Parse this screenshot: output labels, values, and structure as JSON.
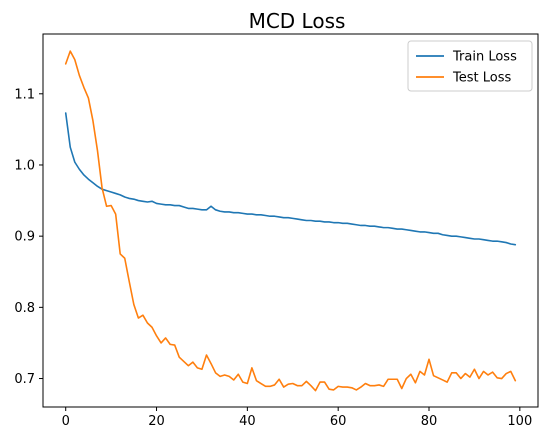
{
  "chart_data": {
    "type": "line",
    "title": "MCD Loss",
    "xlabel": "",
    "ylabel": "",
    "xlim": [
      -5,
      104
    ],
    "ylim": [
      0.66,
      1.184
    ],
    "x_ticks": [
      0,
      20,
      40,
      60,
      80,
      100
    ],
    "y_ticks": [
      0.7,
      0.8,
      0.9,
      1.0,
      1.1
    ],
    "x_tick_labels": [
      "0",
      "20",
      "40",
      "60",
      "80",
      "100"
    ],
    "y_tick_labels": [
      "0.7",
      "0.8",
      "0.9",
      "1.0",
      "1.1"
    ],
    "grid": false,
    "legend_position": "top-right",
    "series": [
      {
        "name": "Train Loss",
        "color": "#1f77b4",
        "x": [
          0,
          1,
          2,
          3,
          4,
          5,
          6,
          7,
          8,
          9,
          10,
          11,
          12,
          13,
          14,
          15,
          16,
          17,
          18,
          19,
          20,
          21,
          22,
          23,
          24,
          25,
          26,
          27,
          28,
          29,
          30,
          31,
          32,
          33,
          34,
          35,
          36,
          37,
          38,
          39,
          40,
          41,
          42,
          43,
          44,
          45,
          46,
          47,
          48,
          49,
          50,
          51,
          52,
          53,
          54,
          55,
          56,
          57,
          58,
          59,
          60,
          61,
          62,
          63,
          64,
          65,
          66,
          67,
          68,
          69,
          70,
          71,
          72,
          73,
          74,
          75,
          76,
          77,
          78,
          79,
          80,
          81,
          82,
          83,
          84,
          85,
          86,
          87,
          88,
          89,
          90,
          91,
          92,
          93,
          94,
          95,
          96,
          97,
          98,
          99
        ],
        "values": [
          1.073,
          1.025,
          1.004,
          0.994,
          0.986,
          0.98,
          0.975,
          0.97,
          0.966,
          0.964,
          0.962,
          0.96,
          0.958,
          0.955,
          0.953,
          0.952,
          0.95,
          0.949,
          0.948,
          0.949,
          0.946,
          0.945,
          0.944,
          0.944,
          0.943,
          0.943,
          0.941,
          0.939,
          0.939,
          0.938,
          0.937,
          0.937,
          0.942,
          0.937,
          0.935,
          0.934,
          0.934,
          0.933,
          0.933,
          0.932,
          0.931,
          0.931,
          0.93,
          0.93,
          0.929,
          0.928,
          0.928,
          0.927,
          0.926,
          0.926,
          0.925,
          0.924,
          0.923,
          0.922,
          0.922,
          0.921,
          0.921,
          0.92,
          0.92,
          0.919,
          0.919,
          0.918,
          0.918,
          0.917,
          0.916,
          0.915,
          0.915,
          0.914,
          0.914,
          0.913,
          0.912,
          0.912,
          0.911,
          0.91,
          0.91,
          0.909,
          0.908,
          0.907,
          0.906,
          0.906,
          0.905,
          0.904,
          0.904,
          0.902,
          0.901,
          0.9,
          0.9,
          0.899,
          0.898,
          0.897,
          0.896,
          0.896,
          0.895,
          0.894,
          0.893,
          0.893,
          0.892,
          0.891,
          0.889,
          0.888
        ]
      },
      {
        "name": "Test Loss",
        "color": "#ff7f0e",
        "x": [
          0,
          1,
          2,
          3,
          4,
          5,
          6,
          7,
          8,
          9,
          10,
          11,
          12,
          13,
          14,
          15,
          16,
          17,
          18,
          19,
          20,
          21,
          22,
          23,
          24,
          25,
          26,
          27,
          28,
          29,
          30,
          31,
          32,
          33,
          34,
          35,
          36,
          37,
          38,
          39,
          40,
          41,
          42,
          43,
          44,
          45,
          46,
          47,
          48,
          49,
          50,
          51,
          52,
          53,
          54,
          55,
          56,
          57,
          58,
          59,
          60,
          61,
          62,
          63,
          64,
          65,
          66,
          67,
          68,
          69,
          70,
          71,
          72,
          73,
          74,
          75,
          76,
          77,
          78,
          79,
          80,
          81,
          82,
          83,
          84,
          85,
          86,
          87,
          88,
          89,
          90,
          91,
          92,
          93,
          94,
          95,
          96,
          97,
          98,
          99
        ],
        "values": [
          1.142,
          1.16,
          1.148,
          1.126,
          1.109,
          1.094,
          1.062,
          1.02,
          0.968,
          0.942,
          0.943,
          0.931,
          0.875,
          0.869,
          0.836,
          0.804,
          0.785,
          0.789,
          0.778,
          0.772,
          0.76,
          0.75,
          0.757,
          0.748,
          0.747,
          0.73,
          0.724,
          0.718,
          0.723,
          0.715,
          0.713,
          0.733,
          0.721,
          0.708,
          0.703,
          0.705,
          0.703,
          0.698,
          0.706,
          0.695,
          0.693,
          0.715,
          0.697,
          0.693,
          0.689,
          0.689,
          0.691,
          0.699,
          0.688,
          0.692,
          0.693,
          0.69,
          0.69,
          0.696,
          0.69,
          0.683,
          0.695,
          0.695,
          0.685,
          0.684,
          0.689,
          0.688,
          0.688,
          0.687,
          0.684,
          0.688,
          0.693,
          0.69,
          0.69,
          0.691,
          0.689,
          0.699,
          0.699,
          0.699,
          0.686,
          0.7,
          0.706,
          0.694,
          0.71,
          0.705,
          0.727,
          0.704,
          0.701,
          0.698,
          0.695,
          0.708,
          0.708,
          0.7,
          0.707,
          0.702,
          0.713,
          0.7,
          0.71,
          0.705,
          0.709,
          0.701,
          0.7,
          0.707,
          0.71,
          0.697
        ]
      }
    ]
  }
}
